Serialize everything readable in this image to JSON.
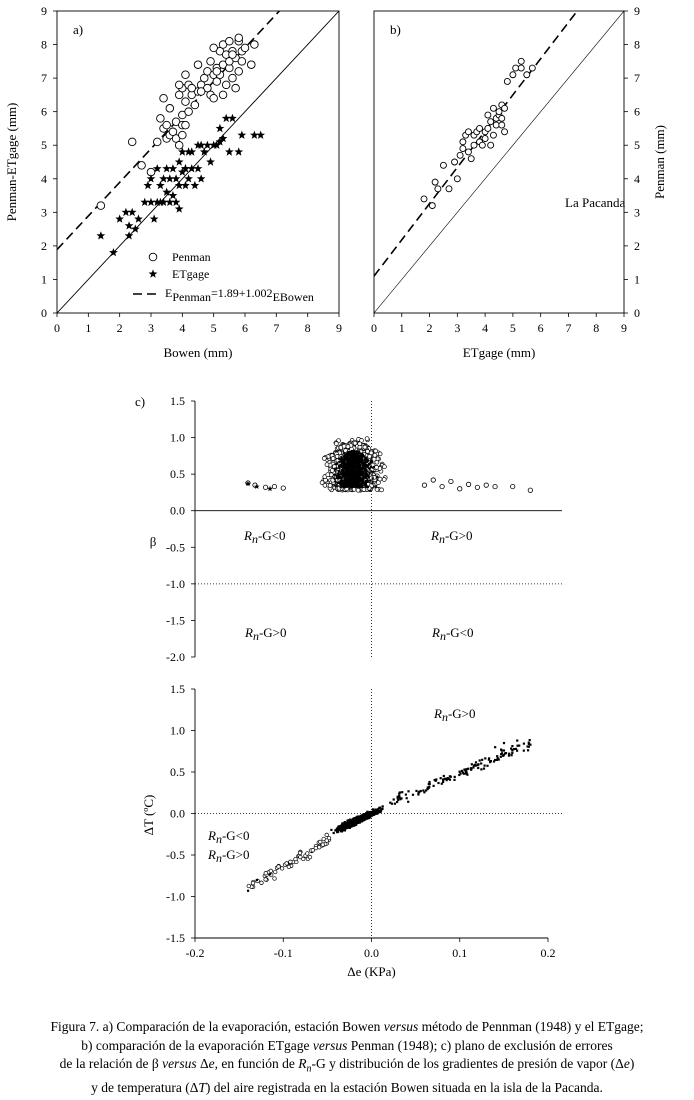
{
  "chart_data": [
    {
      "panel": "a)",
      "type": "scatter",
      "xlabel": "Bowen (mm)",
      "ylabel": "Penman-ETgage (mm)",
      "xlim": [
        0,
        9
      ],
      "ylim": [
        0,
        9
      ],
      "xticks": [
        "0",
        "1",
        "2",
        "3",
        "4",
        "5",
        "6",
        "7",
        "8",
        "9"
      ],
      "yticks": [
        "0",
        "1",
        "2",
        "3",
        "4",
        "5",
        "6",
        "7",
        "8",
        "9"
      ],
      "legend": {
        "position": "bottom-right",
        "entries": [
          {
            "label": "Penman",
            "marker": "circle"
          },
          {
            "label": "ETgage",
            "marker": "star"
          },
          {
            "label_main": "E",
            "label_sub1": "Penman",
            "label_mid": "=1.89+1.002",
            "label_sub2": "EBowen",
            "marker": "dashed-line"
          }
        ]
      },
      "regression": {
        "intercept": 1.89,
        "slope": 1.002,
        "style": "dashed"
      },
      "reference_line": "1:1",
      "series": [
        {
          "name": "Penman",
          "marker": "circle",
          "x": [
            1.4,
            2.4,
            2.7,
            3.0,
            3.2,
            3.3,
            3.4,
            3.5,
            3.4,
            3.6,
            3.8,
            3.8,
            3.9,
            3.9,
            4.0,
            4.0,
            4.0,
            4.0,
            4.1,
            4.1,
            4.2,
            4.2,
            4.3,
            4.4,
            4.5,
            4.5,
            4.6,
            4.7,
            4.8,
            4.8,
            4.9,
            4.9,
            5.0,
            5.0,
            5.1,
            5.1,
            5.2,
            5.2,
            5.3,
            5.3,
            5.3,
            5.4,
            5.4,
            5.5,
            5.5,
            5.5,
            5.6,
            5.6,
            5.7,
            5.7,
            5.8,
            5.8,
            5.9,
            5.9,
            6.0,
            6.2,
            6.3,
            3.7,
            3.6,
            4.1,
            3.9,
            3.5,
            4.3,
            4.6,
            5.1,
            5.0,
            5.6,
            5.8
          ],
          "y": [
            3.2,
            5.1,
            4.4,
            4.2,
            5.1,
            5.8,
            5.5,
            5.2,
            6.4,
            5.3,
            5.7,
            5.2,
            5.0,
            6.5,
            6.7,
            5.9,
            5.3,
            5.6,
            6.3,
            5.6,
            6.0,
            6.8,
            6.5,
            6.2,
            7.4,
            6.6,
            6.8,
            7.0,
            7.2,
            6.7,
            6.5,
            7.5,
            7.1,
            6.4,
            6.9,
            7.3,
            7.8,
            7.1,
            7.4,
            8.0,
            6.5,
            7.7,
            6.8,
            7.3,
            7.5,
            8.1,
            7.0,
            7.8,
            7.6,
            6.7,
            7.2,
            8.1,
            7.8,
            7.5,
            7.9,
            7.4,
            8.0,
            5.4,
            6.1,
            7.1,
            6.8,
            5.6,
            6.7,
            6.6,
            7.2,
            7.9,
            7.7,
            8.2
          ]
        },
        {
          "name": "ETgage",
          "marker": "star",
          "x": [
            1.4,
            1.8,
            2.0,
            2.2,
            2.3,
            2.4,
            2.5,
            2.6,
            2.8,
            2.9,
            3.0,
            3.0,
            3.1,
            3.2,
            3.2,
            3.3,
            3.3,
            3.4,
            3.5,
            3.5,
            3.6,
            3.6,
            3.7,
            3.7,
            3.8,
            3.8,
            3.9,
            3.9,
            4.0,
            4.0,
            4.1,
            4.1,
            4.2,
            4.2,
            4.3,
            4.3,
            4.4,
            4.5,
            4.5,
            4.6,
            4.7,
            4.8,
            4.9,
            5.0,
            5.1,
            5.2,
            5.3,
            5.4,
            5.5,
            5.6,
            5.8,
            5.9,
            6.3,
            6.5,
            2.3,
            3.4,
            3.9,
            4.1,
            4.6,
            5.2
          ],
          "y": [
            2.3,
            1.8,
            2.8,
            3.0,
            2.3,
            3.0,
            2.5,
            2.8,
            3.3,
            3.8,
            3.3,
            4.0,
            2.8,
            3.3,
            4.3,
            3.8,
            3.3,
            4.0,
            4.3,
            3.6,
            3.3,
            4.0,
            3.5,
            4.3,
            4.0,
            3.3,
            4.5,
            3.8,
            4.2,
            4.8,
            3.8,
            4.3,
            4.8,
            4.0,
            4.3,
            4.8,
            3.8,
            5.0,
            4.3,
            5.0,
            4.8,
            5.0,
            4.5,
            5.0,
            5.0,
            5.5,
            5.2,
            5.8,
            4.8,
            5.8,
            4.8,
            5.3,
            5.3,
            5.3,
            2.6,
            3.3,
            3.1,
            4.3,
            4.0,
            5.1
          ]
        }
      ]
    },
    {
      "panel": "b)",
      "type": "scatter",
      "xlabel": "ETgage (mm)",
      "ylabel": "Penman (mm)",
      "xlim": [
        0,
        9
      ],
      "ylim": [
        0,
        9
      ],
      "xticks": [
        "0",
        "1",
        "2",
        "3",
        "4",
        "5",
        "6",
        "7",
        "8",
        "9"
      ],
      "yticks": [
        "0",
        "1",
        "2",
        "3",
        "4",
        "5",
        "6",
        "7",
        "8",
        "9"
      ],
      "annotation": "La Pacanda",
      "regression": {
        "intercept": 1.1,
        "slope": 1.08,
        "style": "dashed"
      },
      "reference_line": "1:1",
      "series": [
        {
          "name": "Penman",
          "marker": "circle",
          "x": [
            1.8,
            2.1,
            2.2,
            2.3,
            2.5,
            2.7,
            2.9,
            3.0,
            3.2,
            3.2,
            3.3,
            3.4,
            3.5,
            3.6,
            3.6,
            3.7,
            3.8,
            3.9,
            4.0,
            4.0,
            4.1,
            4.1,
            4.2,
            4.3,
            4.3,
            4.4,
            4.4,
            4.5,
            4.5,
            4.6,
            4.6,
            4.7,
            4.7,
            4.8,
            5.0,
            5.1,
            5.3,
            5.3,
            5.5,
            5.7,
            3.1,
            3.4,
            3.8,
            4.2,
            4.6
          ],
          "y": [
            3.4,
            3.2,
            3.9,
            3.7,
            4.4,
            3.7,
            4.5,
            4.0,
            4.9,
            5.1,
            5.3,
            5.4,
            4.6,
            5.0,
            5.3,
            5.4,
            5.1,
            5.0,
            5.2,
            5.4,
            5.5,
            5.9,
            5.0,
            5.3,
            6.1,
            5.6,
            5.8,
            5.9,
            6.0,
            6.2,
            5.8,
            6.1,
            5.4,
            6.9,
            7.1,
            7.3,
            7.3,
            7.5,
            7.1,
            7.3,
            4.7,
            4.8,
            5.5,
            5.7,
            5.6
          ]
        }
      ]
    },
    {
      "panel": "c)",
      "type": "scatter",
      "panels": [
        {
          "ylabel": "β",
          "ylim": [
            -2.0,
            1.5
          ],
          "yticks": [
            "1.5",
            "1.0",
            "0.5",
            "0.0",
            "-0.5",
            "-1.0",
            "-1.5",
            "-2.0"
          ],
          "quadrant_labels": [
            {
              "base": "R",
              "sub": "n",
              "rest": "-G<0",
              "position": "upper-left"
            },
            {
              "base": "R",
              "sub": "n",
              "rest": "-G>0",
              "position": "upper-right"
            },
            {
              "base": "R",
              "sub": "n",
              "rest": "-G>0",
              "position": "lower-left"
            },
            {
              "base": "R",
              "sub": "n",
              "rest": "-G<0",
              "position": "lower-right"
            }
          ],
          "note": "dense cloud of β between 0.2 and 0.9 for Δe from -0.14 to 0.18 KPa"
        },
        {
          "ylabel": "ΔT (ºC)",
          "ylim": [
            -1.5,
            1.5
          ],
          "yticks": [
            "1.5",
            "1.0",
            "0.5",
            "0.0",
            "-0.5",
            "-1.0",
            "-1.5"
          ],
          "xlabel": "Δe (KPa)",
          "xlim": [
            -0.2,
            0.2
          ],
          "xticks": [
            "-0.2",
            "-0.1",
            "0.0",
            "0.1",
            "0.2"
          ],
          "quadrant_labels": [
            {
              "base": "R",
              "sub": "n",
              "rest": "-G>0",
              "position": "upper-right"
            },
            {
              "base": "R",
              "sub": "n",
              "rest": "-G<0",
              "position": "left"
            },
            {
              "base": "R",
              "sub": "n",
              "rest": "-G>0",
              "position": "left"
            }
          ],
          "note": "ΔT increases roughly linearly with Δe, from about -0.9 ºC at -0.14 KPa to about 0.85 ºC at 0.18 KPa"
        }
      ]
    }
  ],
  "caption": {
    "line1": [
      {
        "t": "Figura 7. a) Comparación de la evaporación, estación Bowen ",
        "i": false
      },
      {
        "t": "versus",
        "i": true
      },
      {
        "t": " método de Pennman (1948) y el ETgage;",
        "i": false
      }
    ],
    "line2": [
      {
        "t": "b) comparación de la evaporación ETgage ",
        "i": false
      },
      {
        "t": "versus",
        "i": true
      },
      {
        "t": " Penman (1948); c) plano de exclusión de errores",
        "i": false
      }
    ],
    "line3": [
      {
        "t": "de la relación de β ",
        "i": false
      },
      {
        "t": "versus",
        "i": true
      },
      {
        "t": " Δ",
        "i": false
      },
      {
        "t": "e",
        "i": true
      },
      {
        "t": ", en función de ",
        "i": false
      },
      {
        "t": "R",
        "i": true
      },
      {
        "t": "n",
        "i": true,
        "sub": true
      },
      {
        "t": "-G y distribución de los gradientes de presión de vapor (Δ",
        "i": false
      },
      {
        "t": "e",
        "i": true
      },
      {
        "t": ")",
        "i": false
      }
    ],
    "line4": [
      {
        "t": "y de temperatura (Δ",
        "i": false
      },
      {
        "t": "T",
        "i": true
      },
      {
        "t": ") del aire registrada en la estación Bowen situada en la isla de la Pacanda.",
        "i": false
      }
    ]
  }
}
